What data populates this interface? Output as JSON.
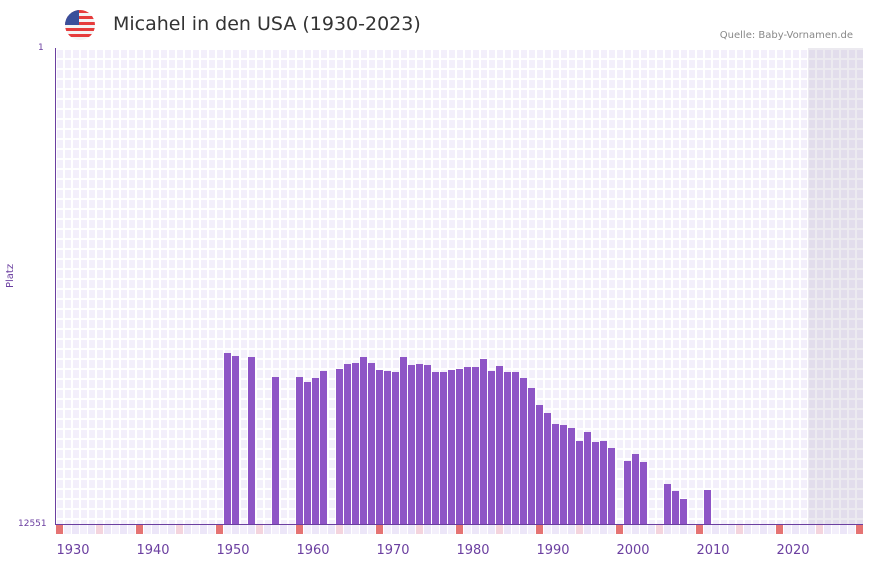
{
  "header": {
    "title": "Micahel in den USA (1930-2023)",
    "source": "Quelle: Baby-Vornamen.de",
    "flag_icon": "us-flag-icon"
  },
  "colors": {
    "bar": "#8e55c6",
    "axis": "#6b3fa0",
    "decade_marker": "#e57373",
    "half_decade_marker": "#f4d4dd",
    "grid_bg": "#f3effb"
  },
  "chart_data": {
    "type": "bar",
    "title": "Micahel in den USA (1930-2023)",
    "xlabel": "",
    "ylabel": "Platz",
    "ylim": [
      12551,
      1
    ],
    "y_inverted": true,
    "xlim": [
      1928,
      2028
    ],
    "x_ticks": [
      "1930",
      "1940",
      "1950",
      "1960",
      "1970",
      "1980",
      "1990",
      "2000",
      "2010",
      "2020"
    ],
    "y_ticks": [
      "1",
      "12551"
    ],
    "grid": true,
    "legend": null,
    "x": [
      1949,
      1950,
      1952,
      1955,
      1958,
      1959,
      1960,
      1961,
      1963,
      1964,
      1965,
      1966,
      1967,
      1968,
      1969,
      1970,
      1971,
      1972,
      1973,
      1974,
      1975,
      1976,
      1977,
      1978,
      1979,
      1980,
      1981,
      1982,
      1983,
      1984,
      1985,
      1986,
      1987,
      1988,
      1989,
      1990,
      1991,
      1992,
      1993,
      1994,
      1995,
      1996,
      1997,
      1999,
      2000,
      2001,
      2004,
      2005,
      2006,
      2009
    ],
    "values": [
      8044,
      8123,
      8150,
      8677,
      8677,
      8809,
      8703,
      8519,
      8466,
      8335,
      8308,
      8150,
      8308,
      8492,
      8519,
      8545,
      8150,
      8361,
      8335,
      8361,
      8545,
      8545,
      8492,
      8466,
      8413,
      8413,
      8203,
      8519,
      8387,
      8545,
      8545,
      8703,
      8966,
      9415,
      9625,
      9915,
      9942,
      10021,
      10364,
      10127,
      10390,
      10364,
      10548,
      10891,
      10706,
      10917,
      11496,
      11681,
      11892,
      11655
    ]
  },
  "y_axis": {
    "top_label": "1",
    "bottom_label": "12551",
    "title": "Platz"
  },
  "x_axis": {
    "labels": [
      "1930",
      "1940",
      "1950",
      "1960",
      "1970",
      "1980",
      "1990",
      "2000",
      "2010",
      "2020"
    ]
  }
}
